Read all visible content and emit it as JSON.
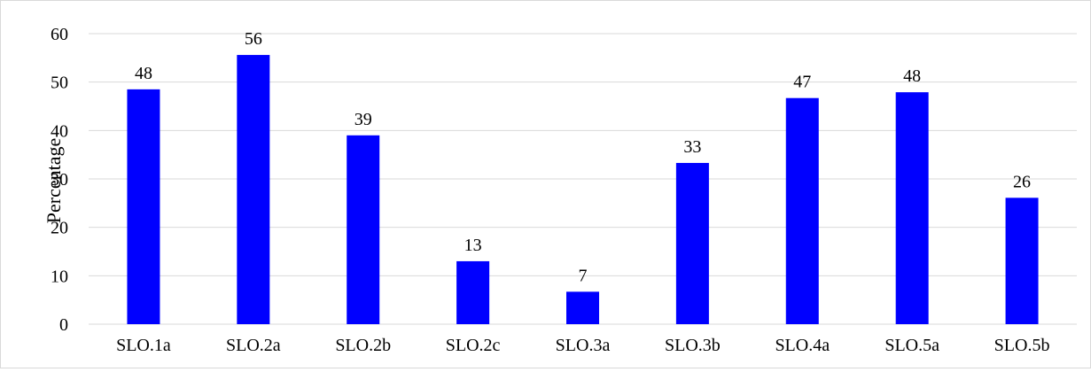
{
  "chart_data": {
    "type": "bar",
    "title": "",
    "xlabel": "",
    "ylabel": "Percentage",
    "categories": [
      "SLO.1a",
      "SLO.2a",
      "SLO.2b",
      "SLO.2c",
      "SLO.3a",
      "SLO.3b",
      "SLO.4a",
      "SLO.5a",
      "SLO.5b"
    ],
    "values": [
      48.5,
      55.6,
      39,
      13,
      6.7,
      33.3,
      46.7,
      47.9,
      26.1
    ],
    "data_labels": [
      "48",
      "56",
      "39",
      "13",
      "7",
      "33",
      "47",
      "48",
      "26"
    ],
    "ylim": [
      0,
      60
    ],
    "yticks": [
      0,
      10,
      20,
      30,
      40,
      50,
      60
    ],
    "grid": true,
    "legend": "none",
    "bar_color": "#0000ff",
    "grid_color": "#d9d9d9"
  }
}
